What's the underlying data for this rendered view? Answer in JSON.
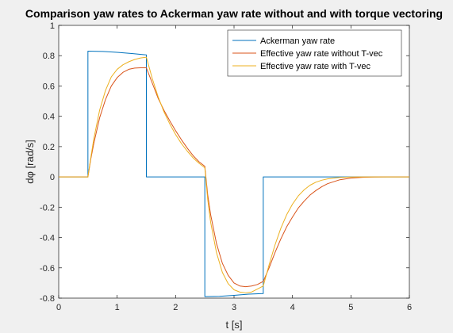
{
  "chart_data": {
    "type": "line",
    "title": "Comparison yaw rates to Ackerman yaw rate without and with torque vectoring",
    "xlabel": "t [s]",
    "ylabel": "dφ [rad/s]",
    "xlim": [
      0,
      6
    ],
    "ylim": [
      -0.8,
      1
    ],
    "x_ticks": [
      0,
      1,
      2,
      3,
      4,
      5,
      6
    ],
    "x_tick_labels": [
      "0",
      "1",
      "2",
      "3",
      "4",
      "5",
      "6"
    ],
    "y_ticks": [
      -0.8,
      -0.6,
      -0.4,
      -0.2,
      0,
      0.2,
      0.4,
      0.6,
      0.8,
      1
    ],
    "y_tick_labels": [
      "-0.8",
      "-0.6",
      "-0.4",
      "-0.2",
      "0",
      "0.2",
      "0.4",
      "0.6",
      "0.8",
      "1"
    ],
    "grid": false,
    "legend_position": "top-right",
    "series": [
      {
        "name": "Ackerman yaw rate",
        "color": "#0072BD",
        "x": [
          0,
          0.5,
          0.5,
          0.75,
          1.0,
          1.25,
          1.5,
          1.5,
          2.0,
          2.5,
          2.5,
          2.75,
          3.0,
          3.25,
          3.5,
          3.5,
          4.0,
          5.0,
          6.0
        ],
        "y": [
          0,
          0,
          0.83,
          0.828,
          0.822,
          0.814,
          0.805,
          0,
          0,
          0,
          -0.79,
          -0.788,
          -0.782,
          -0.774,
          -0.77,
          0,
          0,
          0,
          0
        ]
      },
      {
        "name": "Effective yaw rate without T-vec",
        "color": "#D95319",
        "x": [
          0,
          0.5,
          0.55,
          0.6,
          0.7,
          0.8,
          0.9,
          1.0,
          1.1,
          1.2,
          1.3,
          1.4,
          1.5,
          1.6,
          1.7,
          1.8,
          1.9,
          2.0,
          2.1,
          2.2,
          2.3,
          2.4,
          2.5,
          2.55,
          2.6,
          2.7,
          2.8,
          2.9,
          3.0,
          3.1,
          3.2,
          3.3,
          3.4,
          3.5,
          3.6,
          3.7,
          3.8,
          3.9,
          4.0,
          4.1,
          4.2,
          4.3,
          4.4,
          4.5,
          4.6,
          4.8,
          5.0,
          5.2,
          5.4,
          5.6,
          6.0
        ],
        "y": [
          0,
          0,
          0.12,
          0.22,
          0.39,
          0.51,
          0.6,
          0.655,
          0.69,
          0.71,
          0.718,
          0.72,
          0.72,
          0.62,
          0.52,
          0.44,
          0.37,
          0.305,
          0.245,
          0.19,
          0.14,
          0.1,
          0.07,
          -0.12,
          -0.25,
          -0.44,
          -0.57,
          -0.65,
          -0.7,
          -0.72,
          -0.725,
          -0.72,
          -0.71,
          -0.69,
          -0.6,
          -0.5,
          -0.41,
          -0.33,
          -0.265,
          -0.205,
          -0.16,
          -0.12,
          -0.09,
          -0.065,
          -0.045,
          -0.02,
          -0.008,
          -0.003,
          -0.001,
          0,
          0
        ]
      },
      {
        "name": "Effective yaw rate with T-vec",
        "color": "#EDB120",
        "x": [
          0,
          0.5,
          0.55,
          0.6,
          0.7,
          0.8,
          0.9,
          1.0,
          1.1,
          1.2,
          1.3,
          1.4,
          1.5,
          1.6,
          1.7,
          1.8,
          1.9,
          2.0,
          2.1,
          2.2,
          2.3,
          2.4,
          2.5,
          2.55,
          2.6,
          2.7,
          2.8,
          2.9,
          3.0,
          3.1,
          3.2,
          3.3,
          3.4,
          3.5,
          3.6,
          3.7,
          3.8,
          3.9,
          4.0,
          4.1,
          4.2,
          4.3,
          4.4,
          4.5,
          4.6,
          4.8,
          5.0,
          5.2,
          5.4,
          5.6,
          6.0
        ],
        "y": [
          0,
          0,
          0.13,
          0.25,
          0.44,
          0.57,
          0.66,
          0.71,
          0.74,
          0.76,
          0.775,
          0.785,
          0.79,
          0.65,
          0.53,
          0.43,
          0.35,
          0.28,
          0.22,
          0.17,
          0.125,
          0.09,
          0.06,
          -0.15,
          -0.3,
          -0.5,
          -0.63,
          -0.705,
          -0.745,
          -0.76,
          -0.765,
          -0.76,
          -0.74,
          -0.72,
          -0.58,
          -0.45,
          -0.34,
          -0.25,
          -0.18,
          -0.125,
          -0.085,
          -0.055,
          -0.035,
          -0.022,
          -0.013,
          -0.004,
          -0.001,
          0,
          0,
          0,
          0
        ]
      }
    ]
  }
}
